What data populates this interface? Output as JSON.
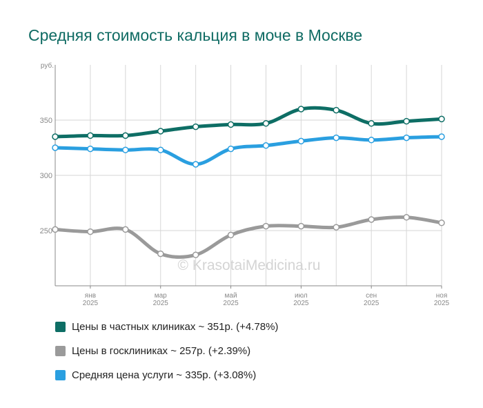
{
  "chart_data": {
    "type": "line",
    "title": "Средняя стоимость кальция в моче в Москве",
    "ylabel": "руб.",
    "ylim": [
      200,
      400
    ],
    "yticks": [
      250,
      300,
      350
    ],
    "x_count": 12,
    "xtick_labels": [
      {
        "index": 1,
        "month": "янв",
        "year": "2025"
      },
      {
        "index": 3,
        "month": "мар",
        "year": "2025"
      },
      {
        "index": 5,
        "month": "май",
        "year": "2025"
      },
      {
        "index": 7,
        "month": "июл",
        "year": "2025"
      },
      {
        "index": 9,
        "month": "сен",
        "year": "2025"
      },
      {
        "index": 11,
        "month": "ноя",
        "year": "2025"
      }
    ],
    "grid": true,
    "watermark": "© KrasotaiMedicina.ru",
    "series": [
      {
        "name": "Цены в частных клиниках",
        "legend": "Цены в частных клиниках ~ 351р. (+4.78%)",
        "color": "#0e6e65",
        "values": [
          335,
          336,
          336,
          340,
          344,
          346,
          347,
          360,
          359,
          347,
          349,
          351
        ]
      },
      {
        "name": "Цены в госклиниках",
        "legend": "Цены в госклиниках ~ 257р. (+2.39%)",
        "color": "#9a9a9a",
        "values": [
          251,
          249,
          251,
          229,
          228,
          246,
          254,
          254,
          253,
          260,
          262,
          257
        ]
      },
      {
        "name": "Средняя цена услуги",
        "legend": "Средняя цена услуги ~ 335р. (+3.08%)",
        "color": "#2a9fe0",
        "values": [
          325,
          324,
          323,
          323,
          310,
          324,
          327,
          331,
          334,
          332,
          334,
          335
        ]
      }
    ]
  }
}
